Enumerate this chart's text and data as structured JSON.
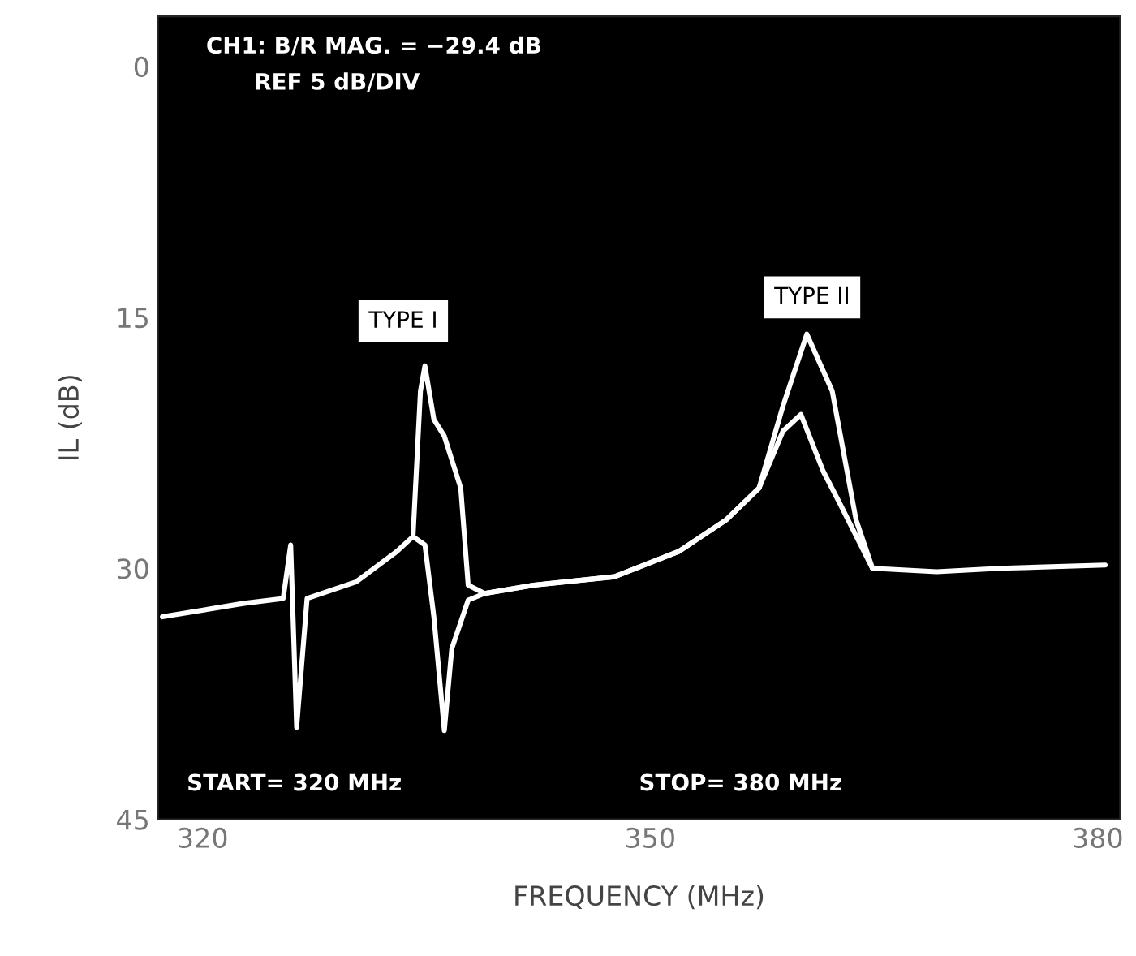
{
  "chart_data": {
    "type": "line",
    "xlabel": "FREQUENCY (MHz)",
    "ylabel": "IL (dB)",
    "xlim": [
      317,
      381.5
    ],
    "xticks": [
      320,
      350,
      380
    ],
    "ylim": [
      45,
      -3
    ],
    "yticks": [
      0,
      15,
      30,
      45
    ],
    "grid": false,
    "legend": false,
    "marker": "none",
    "line_style": "solid",
    "series": [
      {
        "color": "#ffffff",
        "x": [
          317.3,
          322.7,
          325.4,
          325.9,
          326.3,
          327.0,
          330.3,
          333.0,
          334.1,
          334.6,
          334.9,
          335.5,
          336.2,
          337.3,
          337.8,
          338.9,
          342.2,
          347.6,
          351.9,
          355.1,
          357.3,
          358.9,
          360.5,
          362.2,
          363.8,
          364.9,
          369.2,
          373.5,
          380.5
        ],
        "values": [
          32.9,
          32.1,
          31.8,
          28.6,
          39.5,
          31.8,
          30.8,
          29.0,
          28.1,
          19.4,
          17.9,
          21.1,
          22.1,
          25.2,
          31.0,
          31.5,
          31.0,
          30.5,
          29.0,
          27.1,
          25.2,
          20.3,
          16.0,
          19.4,
          27.1,
          30.0,
          30.2,
          30.0,
          29.8
        ]
      },
      {
        "color": "#ffffff",
        "x": [
          334.1,
          334.9,
          335.5,
          336.2,
          336.7,
          337.8,
          338.9,
          342.2,
          347.6,
          351.9,
          355.1,
          357.3,
          358.9,
          360.1,
          361.6,
          362.7,
          364.9
        ],
        "values": [
          28.1,
          28.6,
          32.9,
          39.7,
          34.8,
          31.9,
          31.5,
          31.0,
          30.5,
          29.0,
          27.1,
          25.2,
          21.8,
          20.8,
          24.2,
          26.1,
          30.0
        ]
      }
    ],
    "annotations": [
      "CH1: B/R MAG. = −29.4 dB",
      "REF 5 dB/DIV",
      "START= 320 MHz",
      "STOP= 380 MHz",
      "TYPE I",
      "TYPE II"
    ]
  }
}
